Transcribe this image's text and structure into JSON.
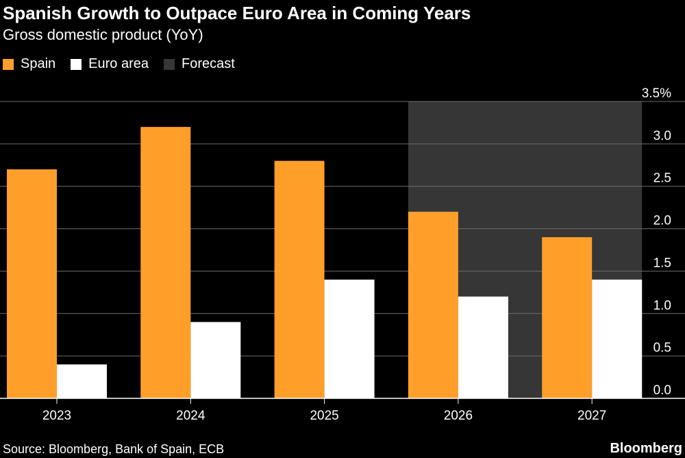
{
  "header": {
    "title": "Spanish Growth to Outpace Euro Area in Coming Years",
    "subtitle": "Gross domestic product (YoY)"
  },
  "legend": {
    "items": [
      {
        "label": "Spain",
        "color": "#ff9f2a"
      },
      {
        "label": "Euro area",
        "color": "#ffffff"
      },
      {
        "label": "Forecast",
        "color": "#363636"
      }
    ]
  },
  "footer": {
    "source": "Source: Bloomberg, Bank of Spain, ECB",
    "brand": "Bloomberg"
  },
  "chart_data": {
    "type": "bar",
    "title": "Spanish Growth to Outpace Euro Area in Coming Years",
    "subtitle": "Gross domestic product (YoY)",
    "categories": [
      "2023",
      "2024",
      "2025",
      "2026",
      "2027"
    ],
    "series": [
      {
        "name": "Spain",
        "color": "#ff9f2a",
        "values": [
          2.7,
          3.2,
          2.8,
          2.2,
          1.9
        ]
      },
      {
        "name": "Euro area",
        "color": "#ffffff",
        "values": [
          0.4,
          0.9,
          1.4,
          1.2,
          1.4
        ]
      }
    ],
    "forecast": {
      "label": "Forecast",
      "from": "2026",
      "to": "2027",
      "color": "#363636"
    },
    "ylim": [
      0,
      3.5
    ],
    "yticks": [
      {
        "value": 0,
        "label": "0.0"
      },
      {
        "value": 0.5,
        "label": "0.5"
      },
      {
        "value": 1.0,
        "label": "1.0"
      },
      {
        "value": 1.5,
        "label": "1.5"
      },
      {
        "value": 2.0,
        "label": "2.0"
      },
      {
        "value": 2.5,
        "label": "2.5"
      },
      {
        "value": 3.0,
        "label": "3.0"
      },
      {
        "value": 3.5,
        "label": "3.5%"
      }
    ],
    "xlabel": "",
    "ylabel": "",
    "grid": true,
    "legend_position": "top-left"
  }
}
